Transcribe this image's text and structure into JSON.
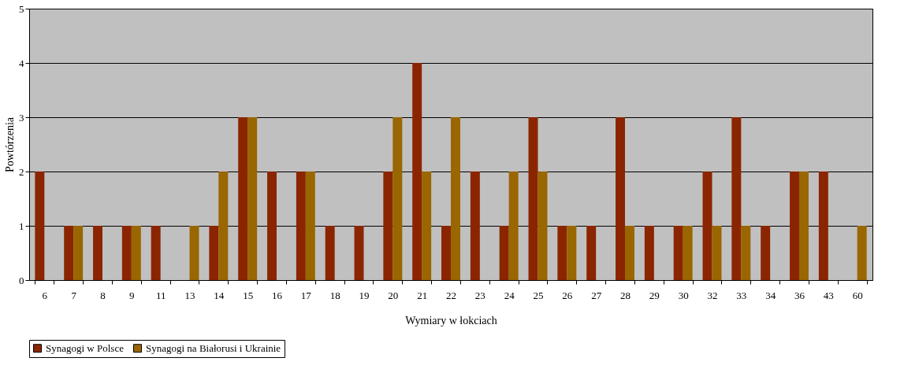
{
  "chart_data": {
    "type": "bar",
    "xlabel": "Wymiary w łokciach",
    "ylabel": "Powtórzenia",
    "categories": [
      "6",
      "7",
      "8",
      "9",
      "11",
      "13",
      "14",
      "15",
      "16",
      "17",
      "18",
      "19",
      "20",
      "21",
      "22",
      "23",
      "24",
      "25",
      "26",
      "27",
      "28",
      "29",
      "30",
      "32",
      "33",
      "34",
      "36",
      "43",
      "60"
    ],
    "series": [
      {
        "name": "Synagogi w Polsce",
        "color": "#8b2500",
        "values": [
          2,
          1,
          1,
          1,
          1,
          0,
          1,
          3,
          2,
          2,
          1,
          1,
          2,
          4,
          1,
          2,
          1,
          3,
          1,
          1,
          3,
          1,
          1,
          2,
          3,
          1,
          2,
          2,
          0
        ]
      },
      {
        "name": "Synagogi na Białorusi i Ukrainie",
        "color": "#996600",
        "values": [
          0,
          1,
          0,
          1,
          0,
          1,
          2,
          3,
          0,
          2,
          0,
          0,
          3,
          2,
          3,
          0,
          2,
          2,
          1,
          0,
          1,
          0,
          1,
          1,
          1,
          0,
          2,
          0,
          1
        ]
      }
    ],
    "ylim": [
      0,
      5
    ],
    "yticks": [
      0,
      1,
      2,
      3,
      4,
      5
    ],
    "grid": "y",
    "legend": "bottom"
  }
}
